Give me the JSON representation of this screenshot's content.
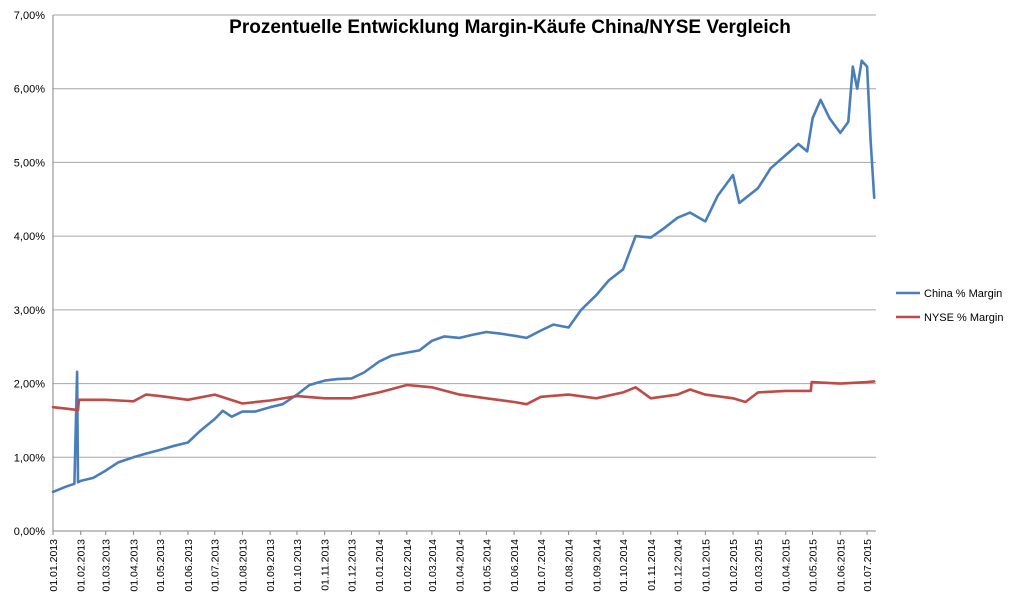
{
  "chart_data": {
    "type": "line",
    "title": "Prozentuelle Entwicklung Margin-Käufe China/NYSE Vergleich",
    "xlabel": "",
    "ylabel": "",
    "ylim": [
      0,
      7
    ],
    "y_ticks": [
      0,
      1,
      2,
      3,
      4,
      5,
      6,
      7
    ],
    "y_tick_labels": [
      "0,00%",
      "1,00%",
      "2,00%",
      "3,00%",
      "4,00%",
      "5,00%",
      "6,00%",
      "7,00%"
    ],
    "x_ticks": [
      "01.01.2013",
      "01.02.2013",
      "01.03.2013",
      "01.04.2013",
      "01.05.2013",
      "01.06.2013",
      "01.07.2013",
      "01.08.2013",
      "01.09.2013",
      "01.10.2013",
      "01.11.2013",
      "01.12.2013",
      "01.01.2014",
      "01.02.2014",
      "01.03.2014",
      "01.04.2014",
      "01.05.2014",
      "01.06.2014",
      "01.07.2014",
      "01.08.2014",
      "01.09.2014",
      "01.10.2014",
      "01.11.2014",
      "01.12.2014",
      "01.01.2015",
      "01.02.2015",
      "01.03.2015",
      "01.04.2015",
      "01.05.2015",
      "01.06.2015",
      "01.07.2015"
    ],
    "grid": "horizontal",
    "legend": "right",
    "series": [
      {
        "name": "China % Margin",
        "color": "#4a7ebb",
        "points": [
          [
            "01.01.2013",
            0.53
          ],
          [
            "15.01.2013",
            0.6
          ],
          [
            "25.01.2013",
            0.64
          ],
          [
            "28.01.2013",
            2.16
          ],
          [
            "29.01.2013",
            0.66
          ],
          [
            "01.02.2013",
            0.68
          ],
          [
            "15.02.2013",
            0.72
          ],
          [
            "01.03.2013",
            0.82
          ],
          [
            "15.03.2013",
            0.93
          ],
          [
            "01.04.2013",
            1.0
          ],
          [
            "15.04.2013",
            1.05
          ],
          [
            "01.05.2013",
            1.1
          ],
          [
            "15.05.2013",
            1.15
          ],
          [
            "01.06.2013",
            1.2
          ],
          [
            "15.06.2013",
            1.36
          ],
          [
            "01.07.2013",
            1.52
          ],
          [
            "10.07.2013",
            1.63
          ],
          [
            "20.07.2013",
            1.55
          ],
          [
            "01.08.2013",
            1.62
          ],
          [
            "15.08.2013",
            1.62
          ],
          [
            "01.09.2013",
            1.68
          ],
          [
            "15.09.2013",
            1.72
          ],
          [
            "01.10.2013",
            1.85
          ],
          [
            "15.10.2013",
            1.98
          ],
          [
            "01.11.2013",
            2.04
          ],
          [
            "15.11.2013",
            2.06
          ],
          [
            "01.12.2013",
            2.07
          ],
          [
            "15.12.2013",
            2.15
          ],
          [
            "01.01.2014",
            2.3
          ],
          [
            "15.01.2014",
            2.38
          ],
          [
            "01.02.2014",
            2.42
          ],
          [
            "15.02.2014",
            2.45
          ],
          [
            "01.03.2014",
            2.58
          ],
          [
            "15.03.2014",
            2.64
          ],
          [
            "01.04.2014",
            2.62
          ],
          [
            "15.04.2014",
            2.66
          ],
          [
            "01.05.2014",
            2.7
          ],
          [
            "15.05.2014",
            2.68
          ],
          [
            "01.06.2014",
            2.65
          ],
          [
            "15.06.2014",
            2.62
          ],
          [
            "01.07.2014",
            2.72
          ],
          [
            "15.07.2014",
            2.8
          ],
          [
            "01.08.2014",
            2.76
          ],
          [
            "15.08.2014",
            3.0
          ],
          [
            "01.09.2014",
            3.2
          ],
          [
            "15.09.2014",
            3.4
          ],
          [
            "01.10.2014",
            3.55
          ],
          [
            "15.10.2014",
            4.0
          ],
          [
            "01.11.2014",
            3.98
          ],
          [
            "15.11.2014",
            4.1
          ],
          [
            "01.12.2014",
            4.25
          ],
          [
            "15.12.2014",
            4.32
          ],
          [
            "01.01.2015",
            4.2
          ],
          [
            "15.01.2015",
            4.55
          ],
          [
            "01.02.2015",
            4.83
          ],
          [
            "08.02.2015",
            4.45
          ],
          [
            "01.03.2015",
            4.65
          ],
          [
            "15.03.2015",
            4.92
          ],
          [
            "01.04.2015",
            5.1
          ],
          [
            "15.04.2015",
            5.25
          ],
          [
            "25.04.2015",
            5.15
          ],
          [
            "01.05.2015",
            5.6
          ],
          [
            "10.05.2015",
            5.85
          ],
          [
            "20.05.2015",
            5.6
          ],
          [
            "01.06.2015",
            5.4
          ],
          [
            "10.06.2015",
            5.55
          ],
          [
            "15.06.2015",
            6.3
          ],
          [
            "20.06.2015",
            6.0
          ],
          [
            "25.06.2015",
            6.38
          ],
          [
            "01.07.2015",
            6.3
          ],
          [
            "05.07.2015",
            5.3
          ],
          [
            "09.07.2015",
            4.52
          ]
        ]
      },
      {
        "name": "NYSE % Margin",
        "color": "#be4b48",
        "points": [
          [
            "01.01.2013",
            1.68
          ],
          [
            "15.01.2013",
            1.66
          ],
          [
            "29.01.2013",
            1.64
          ],
          [
            "30.01.2013",
            1.78
          ],
          [
            "01.02.2013",
            1.78
          ],
          [
            "01.03.2013",
            1.78
          ],
          [
            "01.04.2013",
            1.76
          ],
          [
            "15.04.2013",
            1.85
          ],
          [
            "01.05.2013",
            1.83
          ],
          [
            "01.06.2013",
            1.78
          ],
          [
            "01.07.2013",
            1.85
          ],
          [
            "01.08.2013",
            1.73
          ],
          [
            "01.09.2013",
            1.77
          ],
          [
            "01.10.2013",
            1.83
          ],
          [
            "01.11.2013",
            1.8
          ],
          [
            "01.12.2013",
            1.8
          ],
          [
            "01.01.2014",
            1.88
          ],
          [
            "01.02.2014",
            1.98
          ],
          [
            "01.03.2014",
            1.95
          ],
          [
            "01.04.2014",
            1.85
          ],
          [
            "01.05.2014",
            1.8
          ],
          [
            "01.06.2014",
            1.75
          ],
          [
            "15.06.2014",
            1.72
          ],
          [
            "01.07.2014",
            1.82
          ],
          [
            "01.08.2014",
            1.85
          ],
          [
            "01.09.2014",
            1.8
          ],
          [
            "01.10.2014",
            1.88
          ],
          [
            "15.10.2014",
            1.95
          ],
          [
            "01.11.2014",
            1.8
          ],
          [
            "01.12.2014",
            1.85
          ],
          [
            "15.12.2014",
            1.92
          ],
          [
            "01.01.2015",
            1.85
          ],
          [
            "01.02.2015",
            1.8
          ],
          [
            "15.02.2015",
            1.75
          ],
          [
            "01.03.2015",
            1.88
          ],
          [
            "01.04.2015",
            1.9
          ],
          [
            "29.04.2015",
            1.9
          ],
          [
            "30.04.2015",
            2.02
          ],
          [
            "01.06.2015",
            2.0
          ],
          [
            "01.07.2015",
            2.02
          ],
          [
            "09.07.2015",
            2.03
          ]
        ]
      }
    ]
  }
}
